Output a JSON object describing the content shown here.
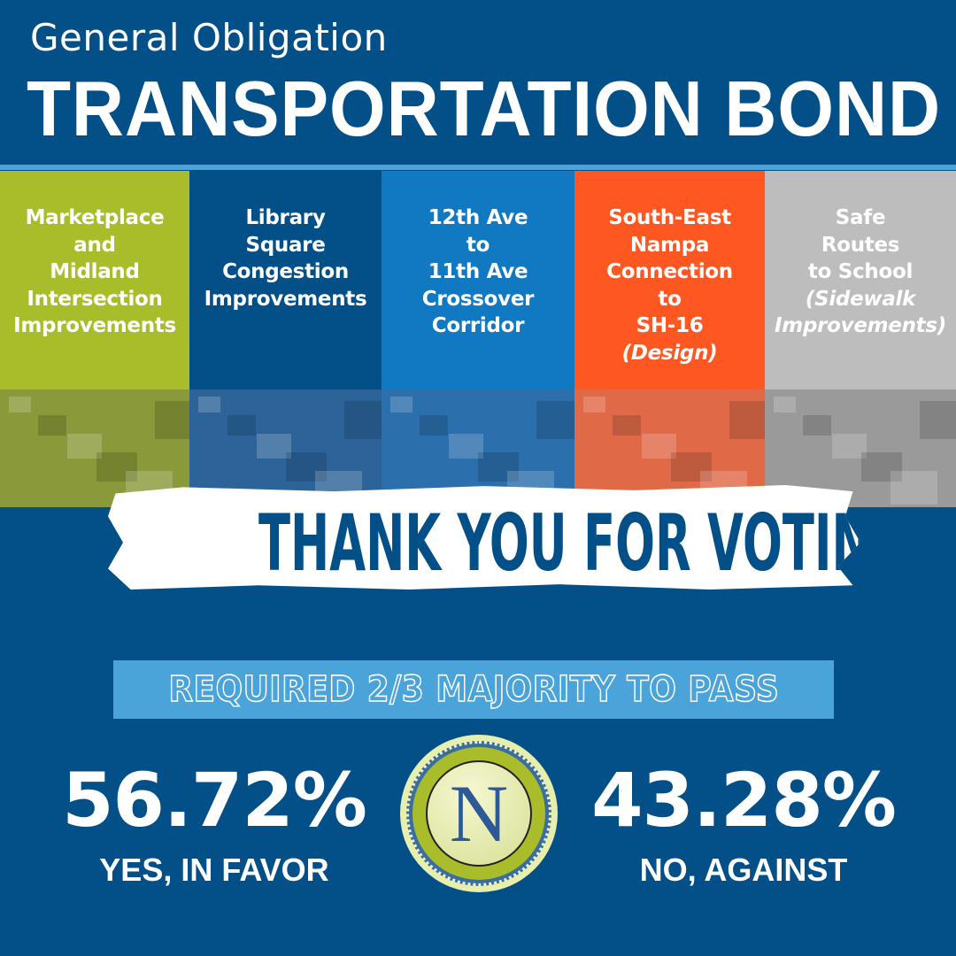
{
  "header": {
    "subtitle": "General Obligation",
    "title": "TRANSPORTATION BOND"
  },
  "projects": [
    {
      "lines": [
        "Marketplace",
        "and",
        "Midland",
        "Intersection",
        "Improvements"
      ],
      "italic": [],
      "color": "#a9bd2b"
    },
    {
      "lines": [
        "Library",
        "Square",
        "Congestion",
        "Improvements"
      ],
      "italic": [],
      "color": "#034f87"
    },
    {
      "lines": [
        "12th Ave",
        "to",
        "11th Ave",
        "Crossover",
        "Corridor"
      ],
      "italic": [],
      "color": "#1178c2"
    },
    {
      "lines": [
        "South-East",
        "Nampa",
        "Connection",
        "to",
        "SH-16"
      ],
      "italic": [
        "(Design)"
      ],
      "color": "#ff5722"
    },
    {
      "lines": [
        "Safe",
        "Routes",
        "to School"
      ],
      "italic": [
        "(Sidewalk",
        "Improvements)"
      ],
      "color": "#bdbdbd"
    }
  ],
  "banner": {
    "text": "THANK YOU FOR VOTING"
  },
  "requirement": {
    "text": "REQUIRED 2/3 MAJORITY TO PASS"
  },
  "results": {
    "yes": {
      "percent": "56.72%",
      "label": "YES, IN FAVOR"
    },
    "no": {
      "percent": "43.28%",
      "label": "NO, AGAINST"
    }
  },
  "seal": {
    "letter": "N"
  },
  "colors": {
    "background": "#034f87",
    "accent": "#4aa3d9"
  }
}
